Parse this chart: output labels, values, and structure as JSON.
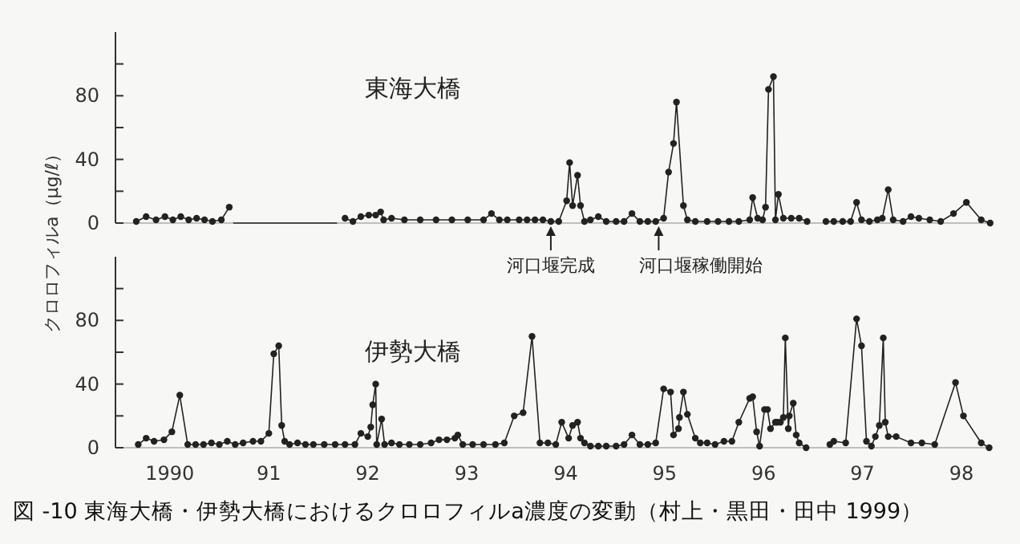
{
  "chart_data": [
    {
      "type": "line",
      "title": "東海大橋",
      "ylabel": "クロロフィルa（μg/ℓ）",
      "xlim": [
        1989.45,
        1998.3
      ],
      "ylim": [
        0,
        120
      ],
      "yticks": [
        0,
        {
          "value": 20,
          "label": null
        },
        40,
        {
          "value": 60,
          "label": null
        },
        80,
        {
          "value": 100,
          "label": null
        }
      ],
      "tick_labels": "y",
      "marker": "circle",
      "line_style": "solid",
      "annotations": [
        {
          "text": "河口堰完成",
          "x": 1993.85,
          "y": 0
        },
        {
          "text": "河口堰稼働開始",
          "x": 1994.94,
          "y": 0
        }
      ],
      "series": [
        {
          "color": "#222222",
          "x": [
            1989.66,
            1989.76,
            1989.86,
            1989.95,
            1990.03,
            1990.11,
            1990.19,
            1990.27,
            1990.35,
            1990.43,
            1990.52,
            1990.6
          ],
          "values": [
            1,
            4,
            2,
            4,
            2,
            4,
            2,
            3,
            2,
            1,
            2,
            10
          ]
        },
        {
          "color": "#222222",
          "x": [
            1991.77,
            1991.85,
            1991.93,
            1992.01,
            1992.08,
            1992.13,
            1992.16,
            1992.24,
            1992.37,
            1992.53,
            1992.69,
            1992.85,
            1993.01,
            1993.17,
            1993.25,
            1993.33,
            1993.41,
            1993.53,
            1993.61,
            1993.69,
            1993.77,
            1993.85,
            1993.93,
            1994.01,
            1994.04,
            1994.07,
            1994.12,
            1994.15,
            1994.19,
            1994.25,
            1994.33,
            1994.41,
            1994.51,
            1994.59,
            1994.67,
            1994.75,
            1994.83,
            1994.91,
            1994.99,
            1995.04,
            1995.09,
            1995.12,
            1995.19,
            1995.23,
            1995.31,
            1995.43,
            1995.54,
            1995.65,
            1995.75,
            1995.86,
            1995.89,
            1995.94,
            1995.99,
            1996.02,
            1996.05,
            1996.1,
            1996.12,
            1996.15,
            1996.2,
            1996.28,
            1996.36,
            1996.44
          ],
          "values": [
            3,
            1,
            4,
            5,
            5,
            7,
            2,
            3,
            2,
            2,
            2,
            2,
            2,
            2,
            6,
            2,
            2,
            2,
            2,
            2,
            2,
            1,
            1,
            14,
            38,
            11,
            30,
            11,
            1,
            2,
            4,
            1,
            1,
            1,
            6,
            1,
            1,
            1,
            3,
            32,
            50,
            76,
            11,
            2,
            1,
            1,
            1,
            1,
            1,
            2,
            16,
            3,
            2,
            10,
            84,
            92,
            2,
            18,
            3,
            3,
            3,
            1
          ]
        },
        {
          "color": "#222222",
          "x": [
            1996.63,
            1996.71,
            1996.8,
            1996.88,
            1996.94,
            1996.99,
            1997.07,
            1997.15,
            1997.2,
            1997.26,
            1997.31,
            1997.41,
            1997.49,
            1997.57,
            1997.68,
            1997.79,
            1997.92,
            1998.05,
            1998.2,
            1998.29
          ],
          "values": [
            1,
            1,
            1,
            1,
            13,
            2,
            1,
            2,
            3,
            21,
            2,
            1,
            4,
            3,
            2,
            1,
            6,
            13,
            2,
            0
          ]
        },
        {
          "type": "line",
          "marker": "none",
          "color": "#222222",
          "x": [
            1990.64,
            1991.69
          ],
          "values": [
            0,
            0
          ]
        }
      ]
    },
    {
      "type": "line",
      "title": "伊勢大橋",
      "xlim": [
        1989.45,
        1998.3
      ],
      "ylim": [
        0,
        120
      ],
      "yticks": [
        0,
        {
          "value": 20,
          "label": null
        },
        40,
        {
          "value": 60,
          "label": null
        },
        80,
        {
          "value": 100,
          "label": null
        }
      ],
      "xticks": [
        {
          "value": 1990,
          "label": "1990"
        },
        {
          "value": 1991,
          "label": "91"
        },
        {
          "value": 1992,
          "label": "92"
        },
        {
          "value": 1993,
          "label": "93"
        },
        {
          "value": 1994,
          "label": "94"
        },
        {
          "value": 1995,
          "label": "95"
        },
        {
          "value": 1996,
          "label": "96"
        },
        {
          "value": 1997,
          "label": "97"
        },
        {
          "value": 1998,
          "label": "98"
        }
      ],
      "marker": "circle",
      "line_style": "solid",
      "annotations": [
        "図 -10 東海大橋・伊勢大橋におけるクロロフィルa濃度の変動（村上・黒田・田中 1999）"
      ],
      "series": [
        {
          "color": "#222222",
          "x": [
            1989.68,
            1989.76,
            1989.84,
            1989.94,
            1990.02,
            1990.1,
            1990.18,
            1990.26,
            1990.34,
            1990.42,
            1990.5,
            1990.58,
            1990.66,
            1990.74,
            1990.84,
            1990.92,
            1991.0,
            1991.05,
            1991.1,
            1991.13,
            1991.16,
            1991.21,
            1991.29,
            1991.37,
            1991.45,
            1991.56,
            1991.67,
            1991.77,
            1991.87,
            1991.93,
            1992.0,
            1992.03,
            1992.05,
            1992.08,
            1992.09,
            1992.14,
            1992.17,
            1992.24,
            1992.32,
            1992.42,
            1992.53,
            1992.64,
            1992.72,
            1992.8,
            1992.88,
            1992.91,
            1992.96,
            1993.06,
            1993.17,
            1993.29,
            1993.38,
            1993.48,
            1993.57,
            1993.66,
            1993.74,
            1993.82,
            1993.9,
            1993.96,
            1994.03,
            1994.07,
            1994.12,
            1994.15,
            1994.19,
            1994.25,
            1994.33,
            1994.41,
            1994.51,
            1994.59,
            1994.67,
            1994.75,
            1994.83,
            1994.91,
            1994.99,
            1995.06,
            1995.09,
            1995.14,
            1995.15,
            1995.19,
            1995.23,
            1995.31,
            1995.36,
            1995.43,
            1995.51,
            1995.6,
            1995.68,
            1995.75,
            1995.86,
            1995.89,
            1995.93,
            1995.96,
            1996.01,
            1996.04,
            1996.07,
            1996.12,
            1996.14,
            1996.17,
            1996.2,
            1996.22,
            1996.25,
            1996.26,
            1996.3,
            1996.33,
            1996.36,
            1996.43
          ],
          "values": [
            2,
            6,
            4,
            5,
            10,
            33,
            2,
            2,
            2,
            3,
            2,
            4,
            2,
            3,
            4,
            4,
            9,
            59,
            64,
            14,
            4,
            2,
            3,
            2,
            2,
            2,
            2,
            2,
            2,
            9,
            7,
            13,
            27,
            40,
            2,
            18,
            2,
            3,
            2,
            2,
            2,
            3,
            5,
            5,
            6,
            8,
            2,
            2,
            2,
            2,
            3,
            20,
            22,
            70,
            3,
            3,
            2,
            16,
            6,
            14,
            16,
            6,
            3,
            1,
            1,
            1,
            1,
            2,
            8,
            2,
            2,
            3,
            37,
            35,
            8,
            12,
            19,
            35,
            21,
            6,
            3,
            3,
            2,
            4,
            4,
            16,
            31,
            32,
            10,
            1,
            24,
            24,
            12,
            16,
            16,
            16,
            19,
            69,
            12,
            20,
            28,
            8,
            3,
            0
          ]
        },
        {
          "color": "#222222",
          "x": [
            1996.67,
            1996.71,
            1996.83,
            1996.94,
            1996.99,
            1997.04,
            1997.09,
            1997.13,
            1997.17,
            1997.21,
            1997.23,
            1997.26,
            1997.34,
            1997.49,
            1997.6,
            1997.73,
            1997.94,
            1998.02,
            1998.2,
            1998.28
          ],
          "values": [
            2,
            4,
            3,
            81,
            64,
            4,
            1,
            7,
            14,
            69,
            16,
            7,
            7,
            3,
            3,
            2,
            41,
            20,
            3,
            0
          ]
        }
      ]
    }
  ]
}
